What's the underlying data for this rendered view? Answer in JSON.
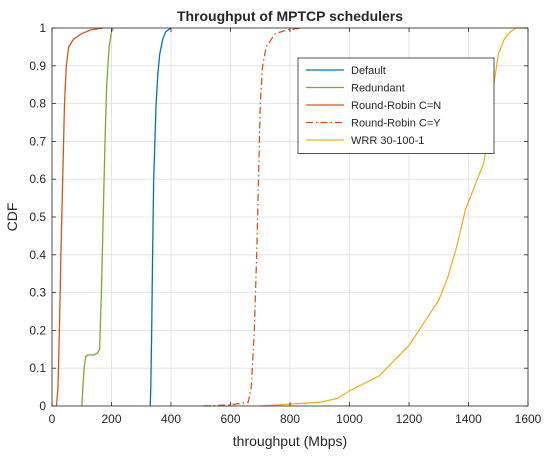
{
  "chart_data": {
    "type": "line",
    "title": "Throughput of MPTCP schedulers",
    "xlabel": "throughput (Mbps)",
    "ylabel": "CDF",
    "xlim": [
      0,
      1600
    ],
    "ylim": [
      0,
      1
    ],
    "xticks": [
      0,
      200,
      400,
      600,
      800,
      1000,
      1200,
      1400,
      1600
    ],
    "yticks": [
      0,
      0.1,
      0.2,
      0.3,
      0.4,
      0.5,
      0.6,
      0.7,
      0.8,
      0.9,
      1
    ],
    "grid": true,
    "legend_position": "top-right",
    "series": [
      {
        "name": "Default",
        "color": "#0072BD",
        "dash": "solid",
        "points": [
          [
            330,
            0
          ],
          [
            332,
            0.05
          ],
          [
            335,
            0.2
          ],
          [
            338,
            0.4
          ],
          [
            342,
            0.6
          ],
          [
            346,
            0.7
          ],
          [
            350,
            0.8
          ],
          [
            356,
            0.88
          ],
          [
            362,
            0.93
          ],
          [
            372,
            0.97
          ],
          [
            382,
            0.99
          ],
          [
            400,
            1.0
          ]
        ]
      },
      {
        "name": "Redundant",
        "color": "#77AC30",
        "dash": "solid",
        "points": [
          [
            100,
            0
          ],
          [
            104,
            0.05
          ],
          [
            108,
            0.1
          ],
          [
            113,
            0.13
          ],
          [
            120,
            0.135
          ],
          [
            140,
            0.135
          ],
          [
            152,
            0.14
          ],
          [
            160,
            0.15
          ],
          [
            166,
            0.3
          ],
          [
            172,
            0.5
          ],
          [
            178,
            0.7
          ],
          [
            184,
            0.85
          ],
          [
            192,
            0.95
          ],
          [
            200,
            0.99
          ],
          [
            206,
            1.0
          ]
        ]
      },
      {
        "name": "Round-Robin C=N",
        "color": "#D95319",
        "dash": "solid",
        "points": [
          [
            15,
            0
          ],
          [
            20,
            0.05
          ],
          [
            25,
            0.2
          ],
          [
            30,
            0.4
          ],
          [
            36,
            0.6
          ],
          [
            42,
            0.8
          ],
          [
            48,
            0.9
          ],
          [
            56,
            0.95
          ],
          [
            72,
            0.97
          ],
          [
            100,
            0.985
          ],
          [
            130,
            0.995
          ],
          [
            170,
            1.0
          ]
        ]
      },
      {
        "name": "Round-Robin C=Y",
        "color": "#D95319",
        "dash": "dashdot",
        "points": [
          [
            510,
            0
          ],
          [
            600,
            0.003
          ],
          [
            660,
            0.01
          ],
          [
            670,
            0.05
          ],
          [
            680,
            0.2
          ],
          [
            688,
            0.4
          ],
          [
            694,
            0.6
          ],
          [
            700,
            0.8
          ],
          [
            708,
            0.9
          ],
          [
            720,
            0.95
          ],
          [
            750,
            0.985
          ],
          [
            790,
            0.995
          ],
          [
            840,
            1.0
          ]
        ]
      },
      {
        "name": "WRR 30-100-1",
        "color": "#EDB120",
        "dash": "solid",
        "points": [
          [
            700,
            0
          ],
          [
            800,
            0.005
          ],
          [
            900,
            0.01
          ],
          [
            960,
            0.02
          ],
          [
            1000,
            0.04
          ],
          [
            1050,
            0.06
          ],
          [
            1100,
            0.08
          ],
          [
            1150,
            0.12
          ],
          [
            1200,
            0.16
          ],
          [
            1250,
            0.22
          ],
          [
            1300,
            0.28
          ],
          [
            1330,
            0.34
          ],
          [
            1360,
            0.42
          ],
          [
            1390,
            0.52
          ],
          [
            1410,
            0.56
          ],
          [
            1430,
            0.6
          ],
          [
            1450,
            0.64
          ],
          [
            1470,
            0.72
          ],
          [
            1485,
            0.85
          ],
          [
            1500,
            0.93
          ],
          [
            1520,
            0.97
          ],
          [
            1540,
            0.99
          ],
          [
            1560,
            1.0
          ],
          [
            1600,
            1.0
          ]
        ]
      }
    ]
  }
}
